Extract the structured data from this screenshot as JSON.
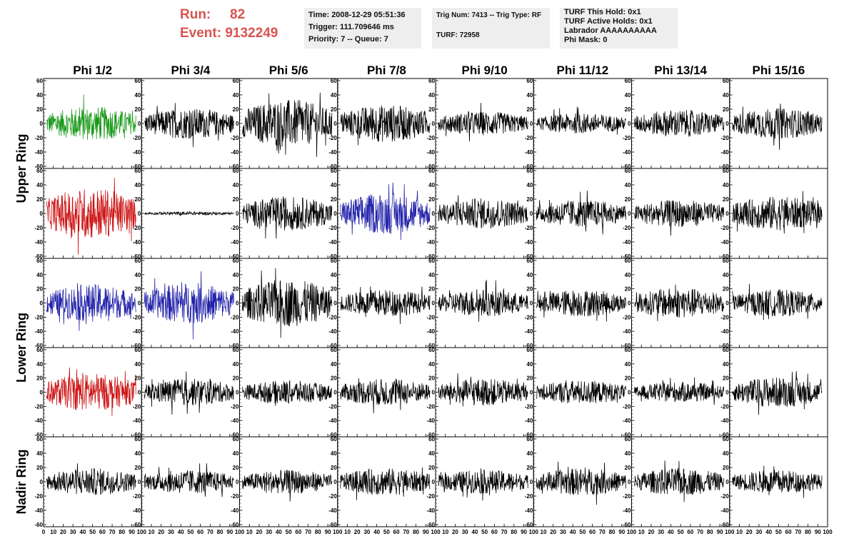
{
  "header": {
    "run_label": "Run:",
    "run_value": "82",
    "event_label": "Event:",
    "event_value": "9132249",
    "time": "Time: 2008-12-29 05:51:36",
    "trigger": "Trigger: 111.709646 ms",
    "priority": "Priority: 7 -- Queue: 7",
    "trig_num": "Trig Num: 7413 -- Trig Type: RF",
    "turf": "TURF: 72958",
    "turf_this_hold": "TURF This Hold: 0x1",
    "turf_active_holds": "TURF Active Holds: 0x1",
    "labrador": "Labrador AAAAAAAAAA",
    "phi_mask": "Phi Mask: 0"
  },
  "chart_data": {
    "type": "line",
    "columns": [
      "Phi 1/2",
      "Phi 3/4",
      "Phi 5/6",
      "Phi 7/8",
      "Phi 9/10",
      "Phi 11/12",
      "Phi 13/14",
      "Phi 15/16"
    ],
    "rows": [
      "Upper Ring",
      "Upper Ring",
      "Lower Ring",
      "Lower Ring",
      "Nadir Ring"
    ],
    "row_labels": [
      "Upper Ring",
      "Lower Ring",
      "Nadir Ring"
    ],
    "ylim": [
      -60,
      60
    ],
    "xlim": [
      0,
      100
    ],
    "y_ticks": [
      -60,
      -40,
      -20,
      0,
      20,
      40,
      60
    ],
    "x_ticks": [
      0,
      10,
      20,
      30,
      40,
      50,
      60,
      70,
      80,
      90,
      100
    ],
    "trace_colors": [
      [
        "#1a9a1a",
        "#000000",
        "#000000",
        "#000000",
        "#000000",
        "#000000",
        "#000000",
        "#000000"
      ],
      [
        "#cc1111",
        "#000000",
        "#000000",
        "#2222aa",
        "#000000",
        "#000000",
        "#000000",
        "#000000"
      ],
      [
        "#2222aa",
        "#2222aa",
        "#000000",
        "#000000",
        "#000000",
        "#000000",
        "#000000",
        "#000000"
      ],
      [
        "#cc1111",
        "#000000",
        "#000000",
        "#000000",
        "#000000",
        "#000000",
        "#000000",
        "#000000"
      ],
      [
        "#000000",
        "#000000",
        "#000000",
        "#000000",
        "#000000",
        "#000000",
        "#000000",
        "#000000"
      ]
    ],
    "amplitudes": [
      [
        20,
        18,
        28,
        22,
        14,
        12,
        16,
        18
      ],
      [
        30,
        2,
        20,
        24,
        18,
        16,
        16,
        20
      ],
      [
        22,
        24,
        28,
        16,
        16,
        16,
        18,
        16
      ],
      [
        22,
        16,
        14,
        16,
        16,
        14,
        12,
        18
      ],
      [
        16,
        14,
        14,
        16,
        14,
        16,
        16,
        14
      ]
    ],
    "grid": false,
    "legend": "none"
  }
}
